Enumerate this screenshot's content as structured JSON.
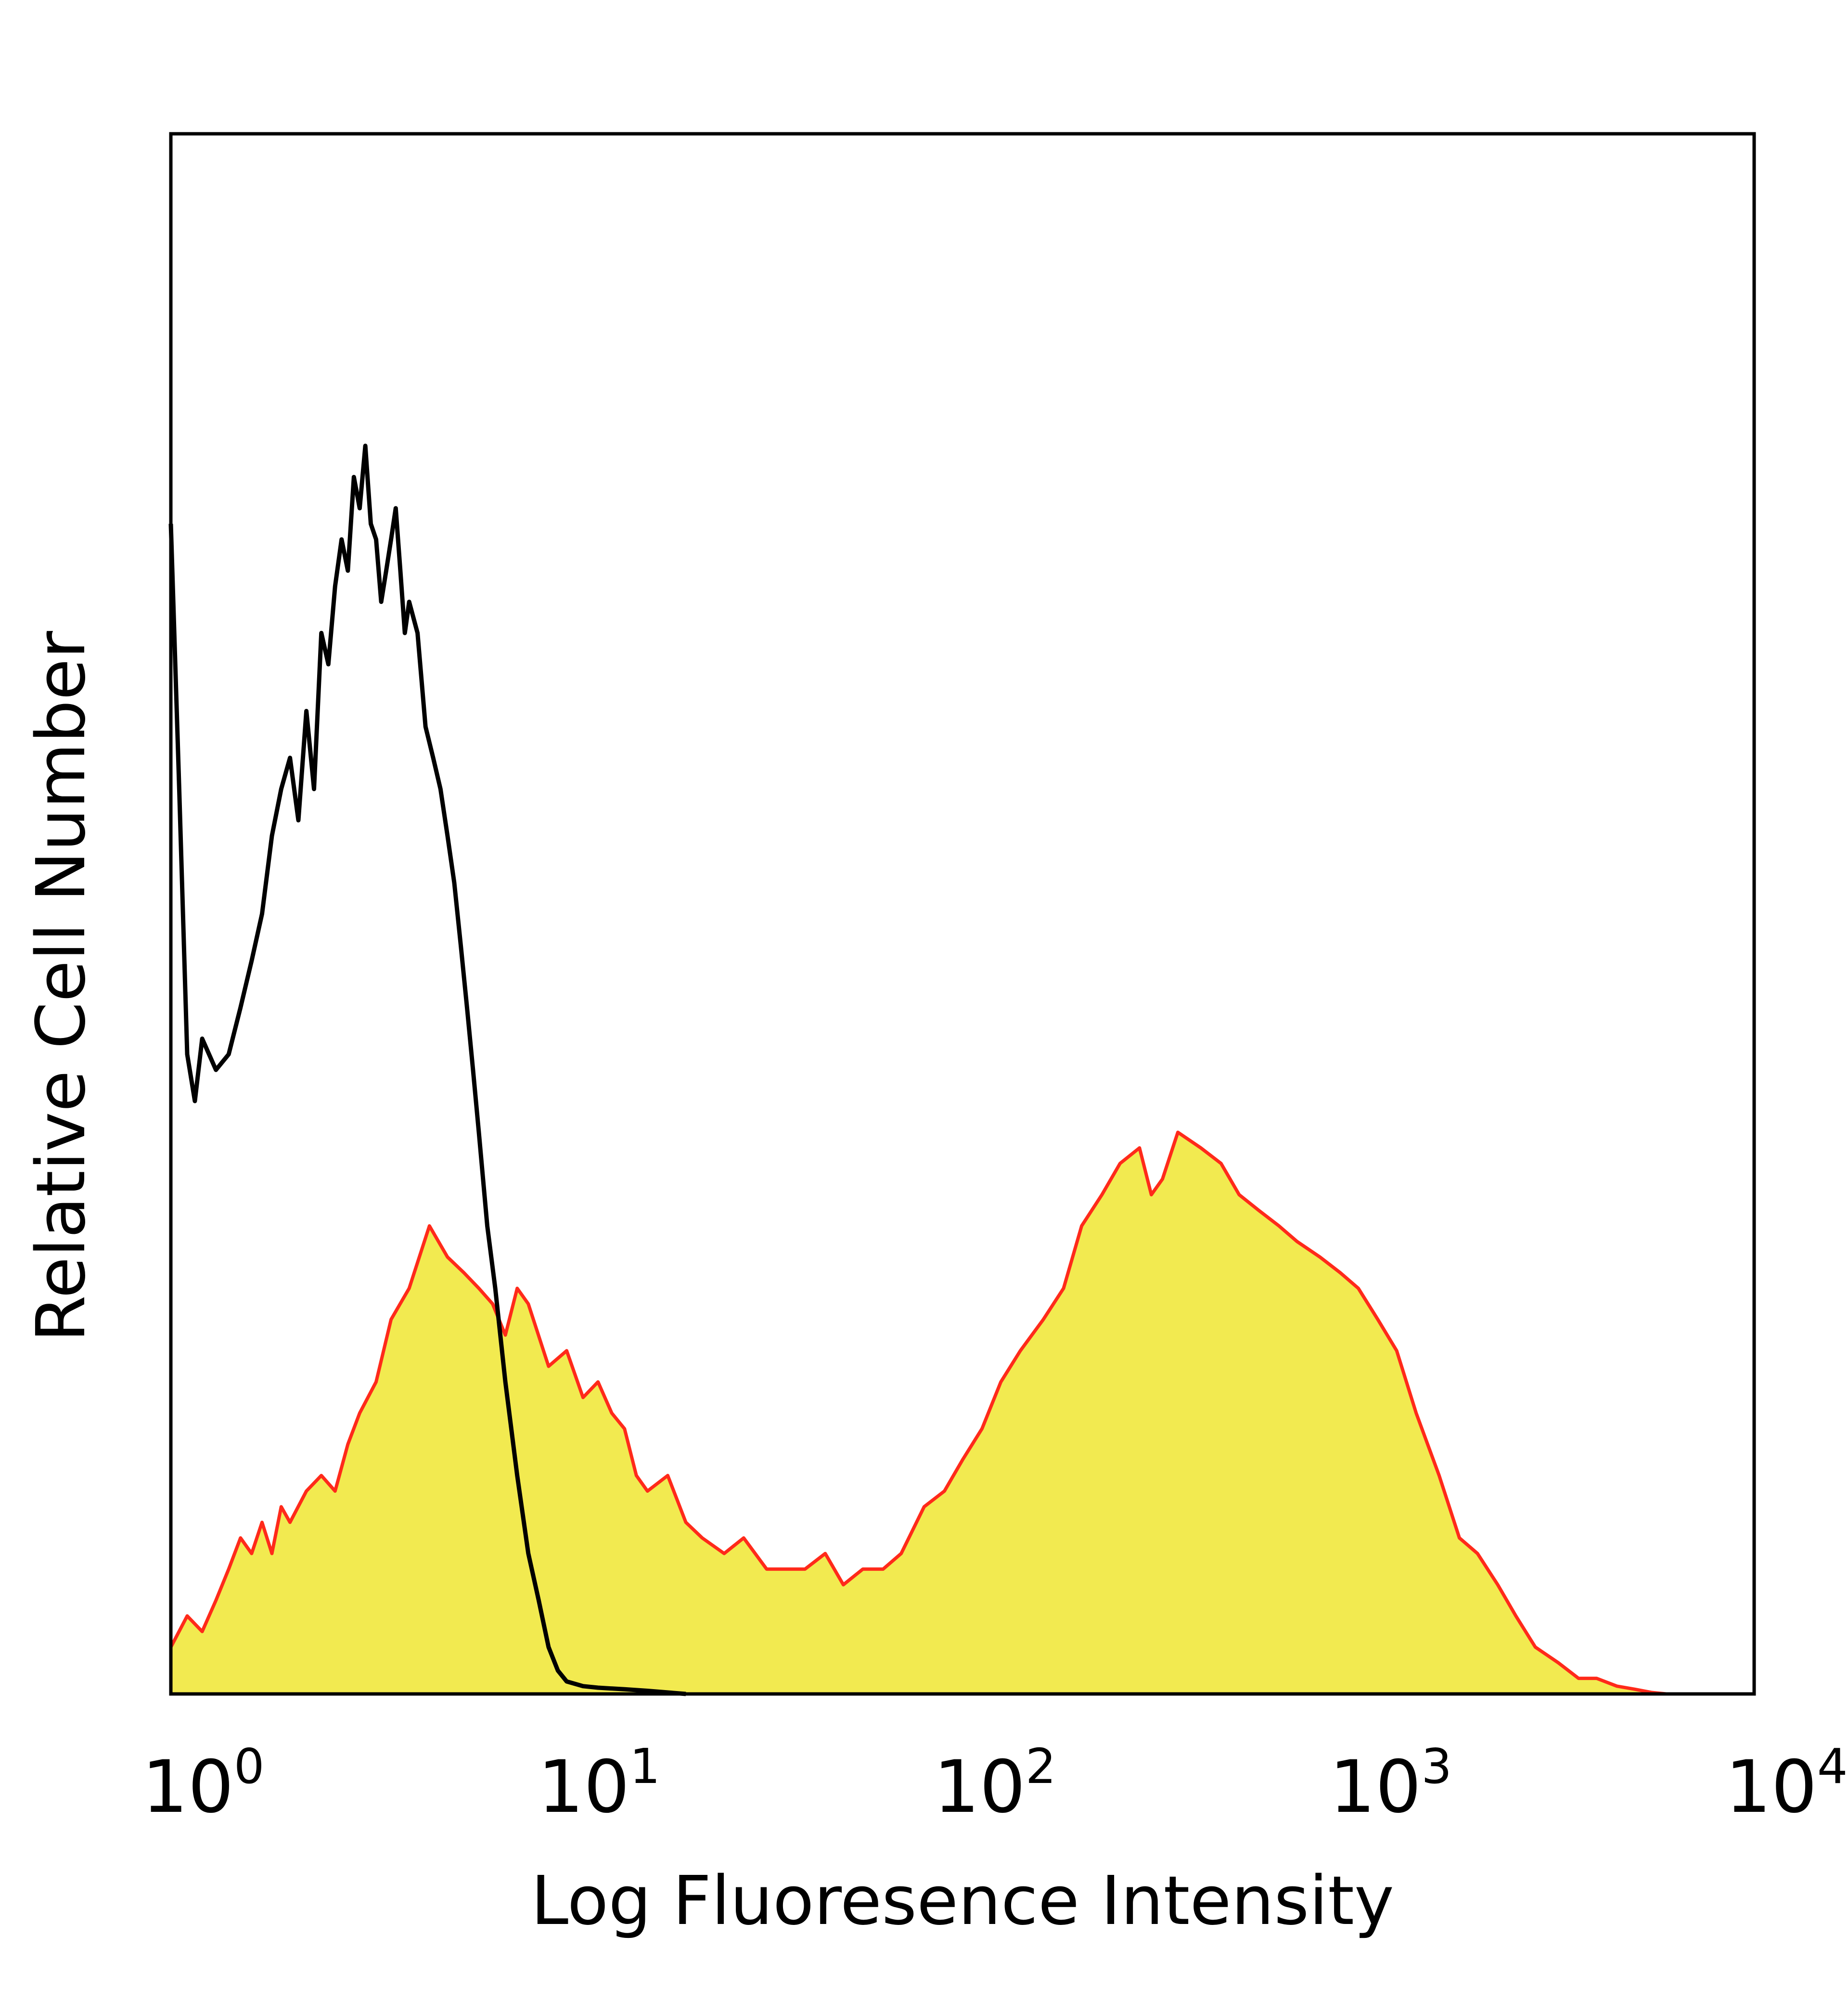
{
  "chart_data": {
    "type": "area",
    "title": "",
    "xlabel": "Log Fluoresence Intensity",
    "ylabel": "Relative Cell Number",
    "xscale": "log",
    "xlim": [
      1,
      10000
    ],
    "ylim": [
      0,
      100
    ],
    "grid": false,
    "legend": "none",
    "x_ticks": [
      {
        "base": "10",
        "exp": "0",
        "value": 1
      },
      {
        "base": "10",
        "exp": "1",
        "value": 10
      },
      {
        "base": "10",
        "exp": "2",
        "value": 100
      },
      {
        "base": "10",
        "exp": "3",
        "value": 1000
      },
      {
        "base": "10",
        "exp": "4",
        "value": 10000
      }
    ],
    "series": [
      {
        "role": "isotype control",
        "style": "black outline",
        "color": "#000000",
        "x": [
          1,
          1.05,
          1.1,
          1.15,
          1.2,
          1.3,
          1.4,
          1.5,
          1.6,
          1.7,
          1.8,
          1.9,
          2.0,
          2.1,
          2.2,
          2.3,
          2.4,
          2.5,
          2.6,
          2.7,
          2.8,
          2.9,
          3.0,
          3.1,
          3.2,
          3.3,
          3.4,
          3.5,
          3.6,
          3.7,
          3.8,
          3.9,
          4.0,
          4.2,
          4.4,
          4.6,
          4.8,
          5.0,
          5.2,
          5.4,
          5.6,
          5.8,
          6.0,
          6.3,
          6.6,
          7.0,
          7.5,
          8.0,
          8.5,
          9.0,
          9.5,
          10,
          11,
          12,
          14,
          16,
          20
        ],
        "y": [
          75,
          58,
          41,
          38,
          42,
          40,
          41,
          44,
          47,
          50,
          55,
          58,
          60,
          56,
          63,
          58,
          68,
          66,
          71,
          74,
          72,
          78,
          76,
          80,
          75,
          74,
          70,
          72,
          74,
          76,
          72,
          68,
          70,
          68,
          62,
          60,
          58,
          55,
          52,
          48,
          44,
          40,
          36,
          30,
          26,
          20,
          14,
          9,
          6,
          3,
          1.5,
          0.8,
          0.5,
          0.4,
          0.3,
          0.2,
          0
        ]
      },
      {
        "role": "stained sample",
        "style": "yellow fill, red outline",
        "color": "#ff2a1a",
        "fill": "#f2ea50",
        "x": [
          1,
          1.1,
          1.2,
          1.3,
          1.4,
          1.5,
          1.6,
          1.7,
          1.8,
          1.9,
          2.0,
          2.2,
          2.4,
          2.6,
          2.8,
          3.0,
          3.3,
          3.6,
          4.0,
          4.5,
          5.0,
          5.5,
          6.0,
          6.5,
          7.0,
          7.5,
          8.0,
          9.0,
          10,
          11,
          12,
          13,
          14,
          15,
          16,
          18,
          20,
          22,
          25,
          28,
          32,
          36,
          40,
          45,
          50,
          56,
          63,
          70,
          80,
          90,
          100,
          112,
          125,
          140,
          160,
          180,
          200,
          225,
          250,
          280,
          300,
          320,
          350,
          400,
          450,
          500,
          560,
          630,
          700,
          800,
          900,
          1000,
          1120,
          1250,
          1400,
          1600,
          1800,
          2000,
          2250,
          2500,
          2800,
          3200,
          3600,
          4000,
          4500,
          5000,
          5500,
          6000
        ],
        "y": [
          3,
          5,
          4,
          6,
          8,
          10,
          9,
          11,
          9,
          12,
          11,
          13,
          14,
          13,
          16,
          18,
          20,
          24,
          26,
          30,
          28,
          27,
          26,
          25,
          23,
          26,
          25,
          21,
          22,
          19,
          20,
          18,
          17,
          14,
          13,
          14,
          11,
          10,
          9,
          10,
          8,
          8,
          8,
          9,
          7,
          8,
          8,
          9,
          12,
          13,
          15,
          17,
          20,
          22,
          24,
          26,
          30,
          32,
          34,
          35,
          32,
          33,
          36,
          35,
          34,
          32,
          31,
          30,
          29,
          28,
          27,
          26,
          24,
          22,
          18,
          14,
          10,
          9,
          7,
          5,
          3,
          2,
          1,
          1,
          0.5,
          0.3,
          0.1,
          0
        ]
      }
    ]
  }
}
